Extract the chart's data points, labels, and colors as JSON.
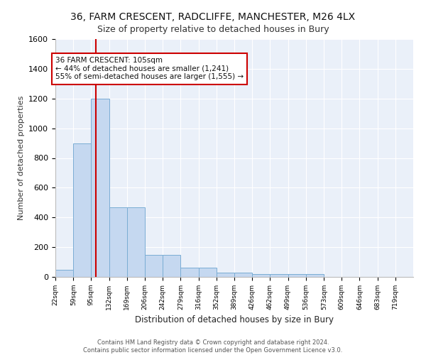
{
  "title": "36, FARM CRESCENT, RADCLIFFE, MANCHESTER, M26 4LX",
  "subtitle": "Size of property relative to detached houses in Bury",
  "xlabel": "Distribution of detached houses by size in Bury",
  "ylabel": "Number of detached properties",
  "bar_color": "#c5d8f0",
  "bar_edge_color": "#7aadd4",
  "background_color": "#eaf0f9",
  "grid_color": "#ffffff",
  "annotation_box_color": "#cc0000",
  "annotation_line1": "36 FARM CRESCENT: 105sqm",
  "annotation_line2": "← 44% of detached houses are smaller (1,241)",
  "annotation_line3": "55% of semi-detached houses are larger (1,555) →",
  "vline_x": 105,
  "vline_color": "#cc0000",
  "footer_text": "Contains HM Land Registry data © Crown copyright and database right 2024.\nContains public sector information licensed under the Open Government Licence v3.0.",
  "bin_edges": [
    22,
    59,
    95,
    132,
    169,
    206,
    242,
    279,
    316,
    352,
    389,
    426,
    462,
    499,
    536,
    573,
    609,
    646,
    683,
    719,
    756
  ],
  "bin_heights": [
    50,
    900,
    1200,
    470,
    470,
    150,
    150,
    60,
    60,
    30,
    30,
    20,
    20,
    20,
    20,
    0,
    0,
    0,
    0,
    0
  ],
  "ylim": [
    0,
    1600
  ],
  "yticks": [
    0,
    200,
    400,
    600,
    800,
    1000,
    1200,
    1400,
    1600
  ]
}
